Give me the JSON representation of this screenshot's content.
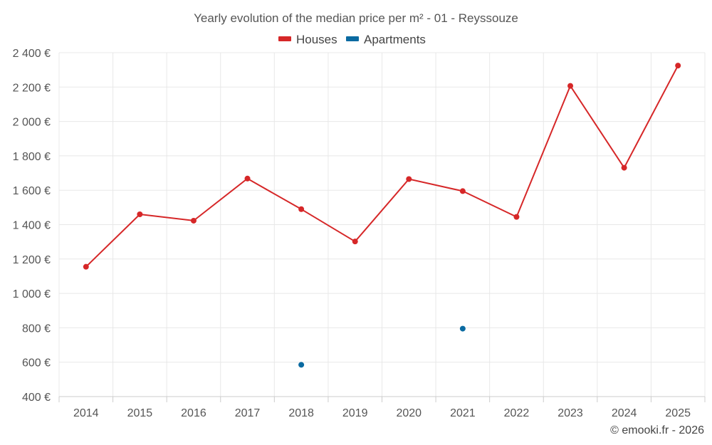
{
  "chart_data": {
    "type": "line",
    "title": "Yearly evolution of the median price per m² - 01 - Reyssouze",
    "categories": [
      "2014",
      "2015",
      "2016",
      "2017",
      "2018",
      "2019",
      "2020",
      "2021",
      "2022",
      "2023",
      "2024",
      "2025"
    ],
    "ylim": [
      400,
      2400
    ],
    "yticks": [
      400,
      600,
      800,
      1000,
      1200,
      1400,
      1600,
      1800,
      2000,
      2200,
      2400
    ],
    "ytick_labels": [
      "400 €",
      "600 €",
      "800 €",
      "1 000 €",
      "1 200 €",
      "1 400 €",
      "1 600 €",
      "1 800 €",
      "2 000 €",
      "2 200 €",
      "2 400 €"
    ],
    "grid": true,
    "legend_position": "top-center",
    "series": [
      {
        "name": "Houses",
        "color": "#d62728",
        "values": [
          1155,
          1460,
          1423,
          1668,
          1490,
          1302,
          1665,
          1595,
          1445,
          2207,
          1731,
          2325
        ]
      },
      {
        "name": "Apartments",
        "color": "#0a6aa1",
        "values": [
          null,
          null,
          null,
          null,
          585,
          null,
          null,
          795,
          null,
          null,
          null,
          null
        ]
      }
    ]
  },
  "credit": "© emooki.fr - 2026"
}
